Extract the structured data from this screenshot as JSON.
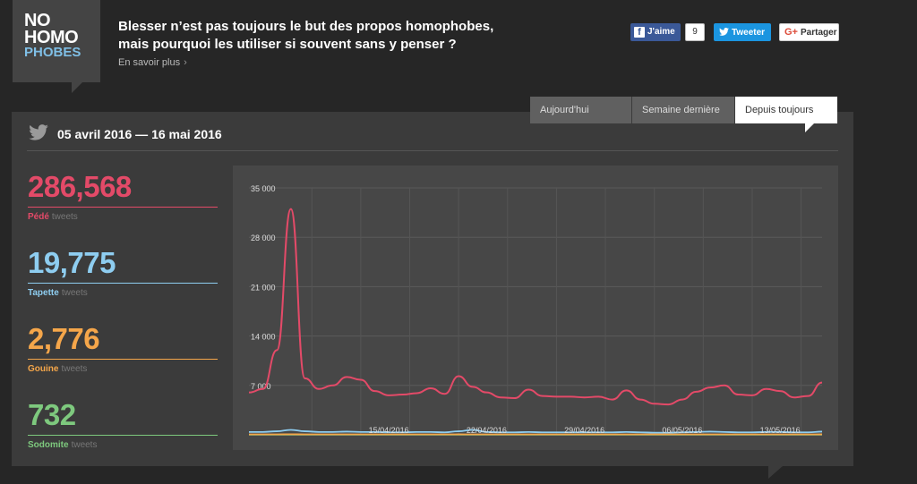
{
  "logo": {
    "line1": "NO",
    "line2": "HOMO",
    "line3": "PHOBES"
  },
  "header": {
    "headline": "Blesser n’est pas toujours le but des propos homophobes, mais pourquoi les utiliser si souvent sans y penser ?",
    "learn_more": "En savoir plus",
    "chevron": "›"
  },
  "social": {
    "facebook_label": "J'aime",
    "facebook_count": "9",
    "twitter_label": "Tweeter",
    "google_label": "Partager",
    "facebook_icon": "f",
    "google_icon": "G+",
    "twitter_icon": "🐦"
  },
  "tabs": [
    {
      "label": "Aujourd'hui",
      "active": false
    },
    {
      "label": "Semaine dernière",
      "active": false
    },
    {
      "label": "Depuis toujours",
      "active": true
    }
  ],
  "date_range": "05 avril 2016 — 16 mai 2016",
  "stats": [
    {
      "value": "286,568",
      "word": "Pédé",
      "unit": "tweets",
      "color": "#e34a68"
    },
    {
      "value": "19,775",
      "word": "Tapette",
      "unit": "tweets",
      "color": "#8ecdf0"
    },
    {
      "value": "2,776",
      "word": "Gouine",
      "unit": "tweets",
      "color": "#f5a64a"
    },
    {
      "value": "732",
      "word": "Sodomite",
      "unit": "tweets",
      "color": "#7ec97e"
    }
  ],
  "chart_data": {
    "type": "line",
    "y_ticks": [
      "35 000",
      "28 000",
      "21 000",
      "14 000",
      "7 000"
    ],
    "y_tick_values": [
      35000,
      28000,
      21000,
      14000,
      7000
    ],
    "ylim": [
      0,
      35000
    ],
    "x_tick_labels": [
      "15/04/2016",
      "22/04/2016",
      "29/04/2016",
      "06/05/2016",
      "13/05/2016"
    ],
    "x_tick_positions": [
      10,
      17,
      24,
      31,
      38
    ],
    "xlim": [
      0,
      41
    ],
    "grid": true,
    "series": [
      {
        "name": "Pédé",
        "color": "#e34a68",
        "values": [
          6000,
          6500,
          12000,
          32000,
          8000,
          6500,
          7000,
          8200,
          7800,
          6200,
          5600,
          5700,
          5900,
          6600,
          5800,
          8300,
          6800,
          6000,
          5300,
          5200,
          6400,
          5500,
          5400,
          5400,
          5300,
          5400,
          5000,
          6300,
          5000,
          4400,
          4300,
          5000,
          6100,
          6700,
          7000,
          5700,
          5600,
          6500,
          6200,
          5300,
          5500,
          7400
        ]
      },
      {
        "name": "Tapette",
        "color": "#8ecdf0",
        "values": [
          400,
          400,
          500,
          700,
          500,
          400,
          400,
          450,
          400,
          400,
          350,
          350,
          400,
          400,
          350,
          500,
          700,
          400,
          350,
          350,
          400,
          350,
          350,
          350,
          350,
          350,
          350,
          400,
          350,
          300,
          300,
          350,
          400,
          450,
          400,
          350,
          350,
          400,
          400,
          350,
          350,
          450
        ]
      },
      {
        "name": "Gouine",
        "color": "#f5a64a",
        "values": [
          60,
          60,
          60,
          80,
          60,
          60,
          60,
          60,
          60,
          60,
          60,
          60,
          60,
          60,
          60,
          70,
          60,
          60,
          60,
          60,
          60,
          60,
          60,
          60,
          60,
          60,
          60,
          60,
          60,
          60,
          60,
          60,
          60,
          60,
          60,
          60,
          60,
          60,
          60,
          60,
          60,
          70
        ]
      },
      {
        "name": "Sodomite",
        "color": "#7ec97e",
        "values": [
          20,
          20,
          20,
          25,
          20,
          20,
          20,
          20,
          20,
          20,
          20,
          20,
          20,
          20,
          20,
          20,
          20,
          20,
          20,
          20,
          20,
          20,
          20,
          20,
          20,
          20,
          20,
          20,
          20,
          20,
          20,
          20,
          20,
          20,
          20,
          20,
          20,
          20,
          20,
          20,
          20,
          20
        ]
      }
    ]
  }
}
